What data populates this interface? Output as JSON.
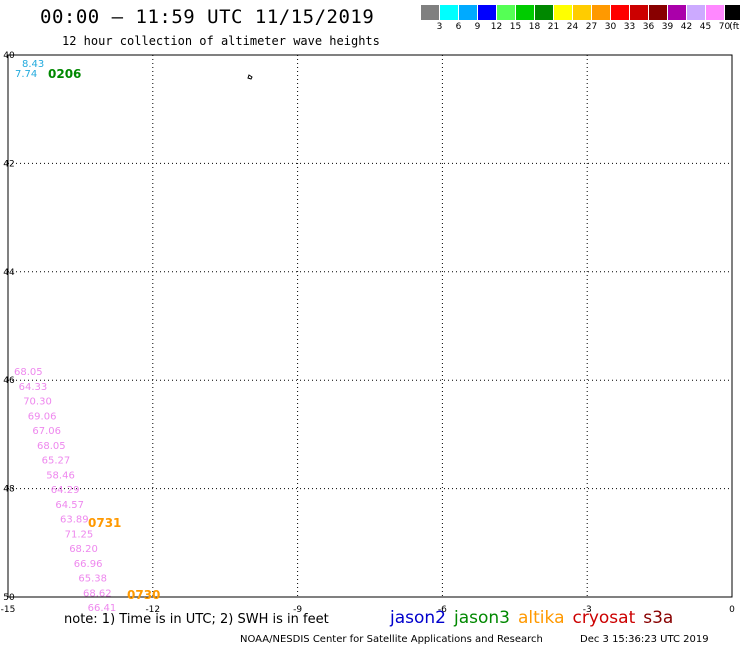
{
  "header": {
    "title": "00:00 – 11:59 UTC 11/15/2019",
    "subtitle": "12 hour collection of altimeter wave heights"
  },
  "legend": {
    "swatches": [
      {
        "color": "#808080",
        "label": "3"
      },
      {
        "color": "#00ffff",
        "label": "6"
      },
      {
        "color": "#00aaff",
        "label": "9"
      },
      {
        "color": "#0000ff",
        "label": "12"
      },
      {
        "color": "#55ff55",
        "label": "15"
      },
      {
        "color": "#00cc00",
        "label": "18"
      },
      {
        "color": "#008800",
        "label": "21"
      },
      {
        "color": "#ffff00",
        "label": "24"
      },
      {
        "color": "#ffcc00",
        "label": "27"
      },
      {
        "color": "#ff9900",
        "label": "30"
      },
      {
        "color": "#ff0000",
        "label": "33"
      },
      {
        "color": "#cc0000",
        "label": "36"
      },
      {
        "color": "#880000",
        "label": "39"
      },
      {
        "color": "#aa00aa",
        "label": "42"
      },
      {
        "color": "#ccaaff",
        "label": "45"
      },
      {
        "color": "#ff88ff",
        "label": "70"
      },
      {
        "color": "#000000",
        "label": ""
      }
    ],
    "unit": "(ft)"
  },
  "map": {
    "x_ticks": [
      "-15",
      "-12",
      "-9",
      "-6",
      "-3",
      "0"
    ],
    "y_ticks": [
      "40",
      "42",
      "44",
      "46",
      "48",
      "50"
    ],
    "lon_range": [
      -15,
      0
    ],
    "lat_range": [
      40,
      50
    ],
    "grid": "dotted"
  },
  "tracks": {
    "cyan_pass": {
      "color": "#22aadd",
      "values": [
        "8.43",
        "7.74"
      ],
      "time": "0206",
      "time_color": "#008800"
    },
    "pink_pass": {
      "color": "#ee88ee",
      "values": [
        "68.05",
        "64.33",
        "70.30",
        "69.06",
        "67.06",
        "68.05",
        "65.27",
        "58.46",
        "64.29",
        "64.57",
        "63.89",
        "71.25",
        "68.20",
        "66.96",
        "65.38",
        "68.62",
        "66.41"
      ],
      "times": [
        {
          "label": "0731",
          "color": "#ff9900"
        },
        {
          "label": "0730",
          "color": "#ff9900"
        }
      ]
    }
  },
  "footer": {
    "note": "note: 1) Time is in UTC; 2) SWH is in feet",
    "satellites": [
      {
        "name": "jason2",
        "color": "#0000cc"
      },
      {
        "name": "jason3",
        "color": "#008800"
      },
      {
        "name": "altika",
        "color": "#ff9900"
      },
      {
        "name": "cryosat",
        "color": "#cc0000"
      },
      {
        "name": "s3a",
        "color": "#880000"
      }
    ],
    "credit": "NOAA/NESDIS Center for Satellite Applications and Research",
    "timestamp": "Dec  3 15:36:23 UTC 2019"
  }
}
